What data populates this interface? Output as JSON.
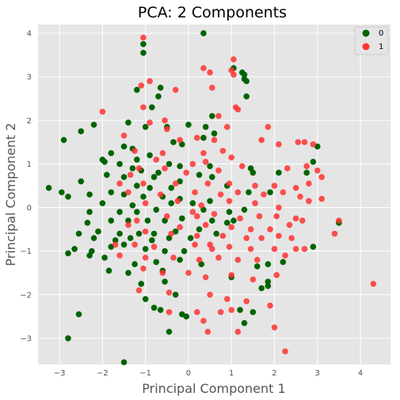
{
  "chart_data": {
    "type": "scatter",
    "title": "PCA: 2 Components",
    "xlabel": "Principal Component 1",
    "ylabel": "Principal Component 2",
    "xlim": [
      -3.5,
      4.7
    ],
    "ylim": [
      -3.6,
      4.2
    ],
    "xticks": [
      -3,
      -2,
      -1,
      0,
      1,
      2,
      3,
      4
    ],
    "yticks": [
      -3,
      -2,
      -1,
      0,
      1,
      2,
      3,
      4
    ],
    "grid": true,
    "legend_position": "top-right",
    "colors": {
      "background": "#e5e5e5",
      "grid": "#ffffff",
      "series_0": "#006400",
      "series_1": "#ff3333"
    },
    "series": [
      {
        "name": "0",
        "points": [
          [
            0.35,
            4.0
          ],
          [
            -1.05,
            3.75
          ],
          [
            -1.05,
            3.55
          ],
          [
            1.05,
            3.2
          ],
          [
            1.3,
            3.05
          ],
          [
            -1.2,
            2.7
          ],
          [
            -0.7,
            2.55
          ],
          [
            -0.65,
            2.75
          ],
          [
            -0.85,
            2.3
          ],
          [
            0.55,
            2.1
          ],
          [
            -1.4,
            1.95
          ],
          [
            -1.0,
            1.85
          ],
          [
            -2.2,
            1.9
          ],
          [
            -2.5,
            1.75
          ],
          [
            -2.9,
            1.55
          ],
          [
            -0.5,
            1.85
          ],
          [
            0.4,
            1.85
          ],
          [
            0.0,
            1.9
          ],
          [
            0.6,
            1.7
          ],
          [
            0.35,
            1.6
          ],
          [
            -0.35,
            1.5
          ],
          [
            -0.15,
            1.45
          ],
          [
            -1.5,
            1.4
          ],
          [
            -1.3,
            1.35
          ],
          [
            -1.8,
            1.25
          ],
          [
            -0.9,
            1.2
          ],
          [
            -1.2,
            1.1
          ],
          [
            -1.95,
            1.05
          ],
          [
            -2.0,
            1.1
          ],
          [
            -1.6,
            1.0
          ],
          [
            -0.45,
            1.0
          ],
          [
            -0.2,
            0.95
          ],
          [
            0.5,
            0.95
          ],
          [
            -1.3,
            0.9
          ],
          [
            -1.1,
            0.85
          ],
          [
            -0.7,
            0.8
          ],
          [
            0.25,
            0.75
          ],
          [
            0.55,
            0.7
          ],
          [
            1.45,
            0.9
          ],
          [
            1.5,
            0.8
          ],
          [
            2.1,
            0.8
          ],
          [
            3.0,
            1.4
          ],
          [
            2.9,
            1.05
          ],
          [
            2.75,
            0.8
          ],
          [
            -1.9,
            0.75
          ],
          [
            -1.5,
            0.7
          ],
          [
            -0.8,
            0.7
          ],
          [
            -0.2,
            0.6
          ],
          [
            -1.2,
            0.5
          ],
          [
            -0.9,
            0.45
          ],
          [
            -0.4,
            0.45
          ],
          [
            0.9,
            0.5
          ],
          [
            1.4,
            0.35
          ],
          [
            1.9,
            0.35
          ],
          [
            -3.25,
            0.45
          ],
          [
            -2.95,
            0.35
          ],
          [
            -2.8,
            0.25
          ],
          [
            -2.5,
            0.6
          ],
          [
            -2.3,
            0.3
          ],
          [
            -1.8,
            0.35
          ],
          [
            -1.5,
            0.3
          ],
          [
            -1.05,
            0.25
          ],
          [
            -0.6,
            0.25
          ],
          [
            -0.2,
            0.2
          ],
          [
            0.5,
            0.15
          ],
          [
            0.1,
            0.1
          ],
          [
            -0.4,
            0.1
          ],
          [
            -1.3,
            0.05
          ],
          [
            -2.0,
            0.1
          ],
          [
            -2.3,
            -0.1
          ],
          [
            -1.6,
            -0.1
          ],
          [
            -1.2,
            -0.1
          ],
          [
            -0.75,
            -0.05
          ],
          [
            0.35,
            -0.05
          ],
          [
            0.95,
            -0.1
          ],
          [
            1.3,
            -0.05
          ],
          [
            -2.35,
            -0.35
          ],
          [
            -1.8,
            -0.3
          ],
          [
            -1.4,
            -0.3
          ],
          [
            -0.95,
            -0.3
          ],
          [
            -0.55,
            -0.3
          ],
          [
            -0.15,
            -0.25
          ],
          [
            0.55,
            -0.3
          ],
          [
            0.9,
            -0.35
          ],
          [
            1.05,
            -0.3
          ],
          [
            -2.1,
            -0.55
          ],
          [
            -1.6,
            -0.6
          ],
          [
            -1.15,
            -0.6
          ],
          [
            -0.8,
            -0.6
          ],
          [
            -0.3,
            -0.55
          ],
          [
            0.25,
            -0.5
          ],
          [
            0.65,
            -0.6
          ],
          [
            -2.55,
            -0.6
          ],
          [
            -2.2,
            -0.7
          ],
          [
            -1.7,
            -0.75
          ],
          [
            -1.35,
            -0.7
          ],
          [
            -0.85,
            -0.75
          ],
          [
            -0.45,
            -0.7
          ],
          [
            0.05,
            -0.7
          ],
          [
            -2.65,
            -0.95
          ],
          [
            -2.25,
            -1.0
          ],
          [
            -1.8,
            -0.9
          ],
          [
            -1.5,
            -0.85
          ],
          [
            -1.0,
            -0.95
          ],
          [
            -0.55,
            -1.0
          ],
          [
            -0.1,
            -1.0
          ],
          [
            -2.8,
            -1.05
          ],
          [
            -2.3,
            -1.1
          ],
          [
            -1.95,
            -1.15
          ],
          [
            -1.25,
            -1.3
          ],
          [
            -0.75,
            -1.25
          ],
          [
            -0.2,
            -1.2
          ],
          [
            0.3,
            -1.3
          ],
          [
            -1.85,
            -1.45
          ],
          [
            -1.4,
            -1.5
          ],
          [
            -0.6,
            -1.45
          ],
          [
            -0.55,
            -1.7
          ],
          [
            -1.1,
            -1.75
          ],
          [
            -0.3,
            -2.0
          ],
          [
            1.0,
            -1.6
          ],
          [
            1.6,
            -1.35
          ],
          [
            1.85,
            -1.3
          ],
          [
            2.2,
            -1.25
          ],
          [
            1.7,
            -1.85
          ],
          [
            1.85,
            -1.8
          ],
          [
            1.85,
            -1.7
          ],
          [
            -1.0,
            -2.1
          ],
          [
            -0.8,
            -2.3
          ],
          [
            -0.65,
            -2.35
          ],
          [
            -0.15,
            -2.45
          ],
          [
            -0.05,
            -2.5
          ],
          [
            1.2,
            -2.35
          ],
          [
            1.5,
            -2.4
          ],
          [
            1.3,
            -2.65
          ],
          [
            -2.55,
            -2.45
          ],
          [
            -2.8,
            -3.0
          ],
          [
            -0.45,
            -2.85
          ],
          [
            -1.5,
            -3.55
          ],
          [
            3.5,
            -0.35
          ],
          [
            2.9,
            -0.9
          ],
          [
            1.25,
            3.1
          ],
          [
            1.3,
            2.95
          ],
          [
            1.35,
            2.9
          ],
          [
            1.35,
            2.55
          ]
        ]
      },
      {
        "name": "1",
        "points": [
          [
            -1.05,
            3.9
          ],
          [
            0.35,
            3.2
          ],
          [
            0.5,
            3.1
          ],
          [
            1.05,
            3.4
          ],
          [
            1.0,
            3.15
          ],
          [
            1.05,
            3.05
          ],
          [
            -1.1,
            2.8
          ],
          [
            -0.9,
            2.9
          ],
          [
            -0.3,
            2.7
          ],
          [
            0.55,
            2.75
          ],
          [
            1.1,
            2.3
          ],
          [
            1.15,
            2.25
          ],
          [
            -1.05,
            2.3
          ],
          [
            -2.0,
            2.2
          ],
          [
            0.7,
            2.1
          ],
          [
            -0.55,
            2.0
          ],
          [
            -0.9,
            1.95
          ],
          [
            -0.5,
            1.8
          ],
          [
            0.9,
            1.85
          ],
          [
            1.85,
            1.85
          ],
          [
            -1.5,
            1.65
          ],
          [
            -0.2,
            1.55
          ],
          [
            0.2,
            1.6
          ],
          [
            0.6,
            1.55
          ],
          [
            1.7,
            1.55
          ],
          [
            2.55,
            1.5
          ],
          [
            2.7,
            1.5
          ],
          [
            2.1,
            1.45
          ],
          [
            2.9,
            1.45
          ],
          [
            -1.25,
            1.3
          ],
          [
            -0.6,
            1.25
          ],
          [
            0.35,
            1.25
          ],
          [
            0.8,
            1.3
          ],
          [
            1.0,
            1.15
          ],
          [
            0.4,
            1.05
          ],
          [
            0.1,
            1.0
          ],
          [
            -0.55,
            0.9
          ],
          [
            -1.15,
            0.9
          ],
          [
            -0.05,
            0.8
          ],
          [
            0.7,
            0.85
          ],
          [
            2.3,
            0.9
          ],
          [
            2.75,
            0.95
          ],
          [
            3.0,
            0.85
          ],
          [
            -1.6,
            0.55
          ],
          [
            -1.05,
            0.55
          ],
          [
            -0.3,
            0.55
          ],
          [
            0.45,
            0.55
          ],
          [
            0.95,
            0.55
          ],
          [
            1.55,
            0.5
          ],
          [
            2.0,
            0.5
          ],
          [
            2.5,
            0.45
          ],
          [
            2.8,
            0.55
          ],
          [
            3.1,
            0.7
          ],
          [
            -1.4,
            0.35
          ],
          [
            -0.65,
            0.3
          ],
          [
            0.15,
            0.35
          ],
          [
            0.75,
            0.3
          ],
          [
            1.15,
            0.35
          ],
          [
            1.75,
            0.3
          ],
          [
            2.2,
            0.35
          ],
          [
            2.6,
            0.25
          ],
          [
            3.1,
            0.2
          ],
          [
            -1.0,
            0.1
          ],
          [
            -0.25,
            0.15
          ],
          [
            0.3,
            0.05
          ],
          [
            0.95,
            0.15
          ],
          [
            1.55,
            0.1
          ],
          [
            2.1,
            0.0
          ],
          [
            2.8,
            0.15
          ],
          [
            -1.2,
            -0.3
          ],
          [
            -0.5,
            -0.2
          ],
          [
            0.2,
            -0.2
          ],
          [
            0.6,
            -0.15
          ],
          [
            1.2,
            -0.25
          ],
          [
            1.65,
            -0.2
          ],
          [
            2.05,
            -0.2
          ],
          [
            2.5,
            -0.25
          ],
          [
            2.65,
            -0.3
          ],
          [
            3.5,
            -0.3
          ],
          [
            -1.4,
            -0.4
          ],
          [
            -0.2,
            -0.45
          ],
          [
            0.4,
            -0.4
          ],
          [
            1.0,
            -0.45
          ],
          [
            1.45,
            -0.5
          ],
          [
            1.9,
            -0.5
          ],
          [
            2.35,
            -0.4
          ],
          [
            -1.0,
            -0.55
          ],
          [
            -0.4,
            -0.6
          ],
          [
            0.2,
            -0.65
          ],
          [
            0.8,
            -0.65
          ],
          [
            1.35,
            -0.7
          ],
          [
            1.7,
            -0.7
          ],
          [
            2.1,
            -0.65
          ],
          [
            2.4,
            -0.7
          ],
          [
            3.4,
            -0.6
          ],
          [
            -1.7,
            -0.85
          ],
          [
            -1.25,
            -0.85
          ],
          [
            -0.8,
            -0.9
          ],
          [
            0.15,
            -0.85
          ],
          [
            0.5,
            -0.85
          ],
          [
            0.95,
            -0.9
          ],
          [
            1.45,
            -0.95
          ],
          [
            2.0,
            -0.95
          ],
          [
            2.5,
            -0.95
          ],
          [
            2.7,
            -0.95
          ],
          [
            -1.6,
            -1.1
          ],
          [
            -1.0,
            -1.15
          ],
          [
            -0.35,
            -1.15
          ],
          [
            0.25,
            -1.2
          ],
          [
            0.7,
            -1.15
          ],
          [
            1.15,
            -1.2
          ],
          [
            1.6,
            -1.2
          ],
          [
            2.25,
            -1.1
          ],
          [
            -1.05,
            -1.4
          ],
          [
            -0.6,
            -1.5
          ],
          [
            0.0,
            -1.5
          ],
          [
            0.4,
            -1.6
          ],
          [
            1.0,
            -1.55
          ],
          [
            1.5,
            -1.65
          ],
          [
            2.05,
            -1.55
          ],
          [
            4.3,
            -1.75
          ],
          [
            -1.15,
            -1.9
          ],
          [
            -0.45,
            -1.95
          ],
          [
            0.5,
            -2.0
          ],
          [
            0.9,
            -2.1
          ],
          [
            1.35,
            -2.15
          ],
          [
            -0.45,
            -2.4
          ],
          [
            0.2,
            -2.4
          ],
          [
            0.75,
            -2.4
          ],
          [
            1.0,
            -2.35
          ],
          [
            1.9,
            -2.25
          ],
          [
            0.35,
            -2.6
          ],
          [
            0.45,
            -2.85
          ],
          [
            1.15,
            -2.85
          ],
          [
            2.0,
            -2.75
          ],
          [
            2.25,
            -3.3
          ],
          [
            -0.75,
            1.1
          ],
          [
            -1.35,
            0.75
          ],
          [
            1.25,
            0.95
          ],
          [
            0.1,
            -0.1
          ],
          [
            0.55,
            -0.95
          ]
        ]
      }
    ]
  }
}
